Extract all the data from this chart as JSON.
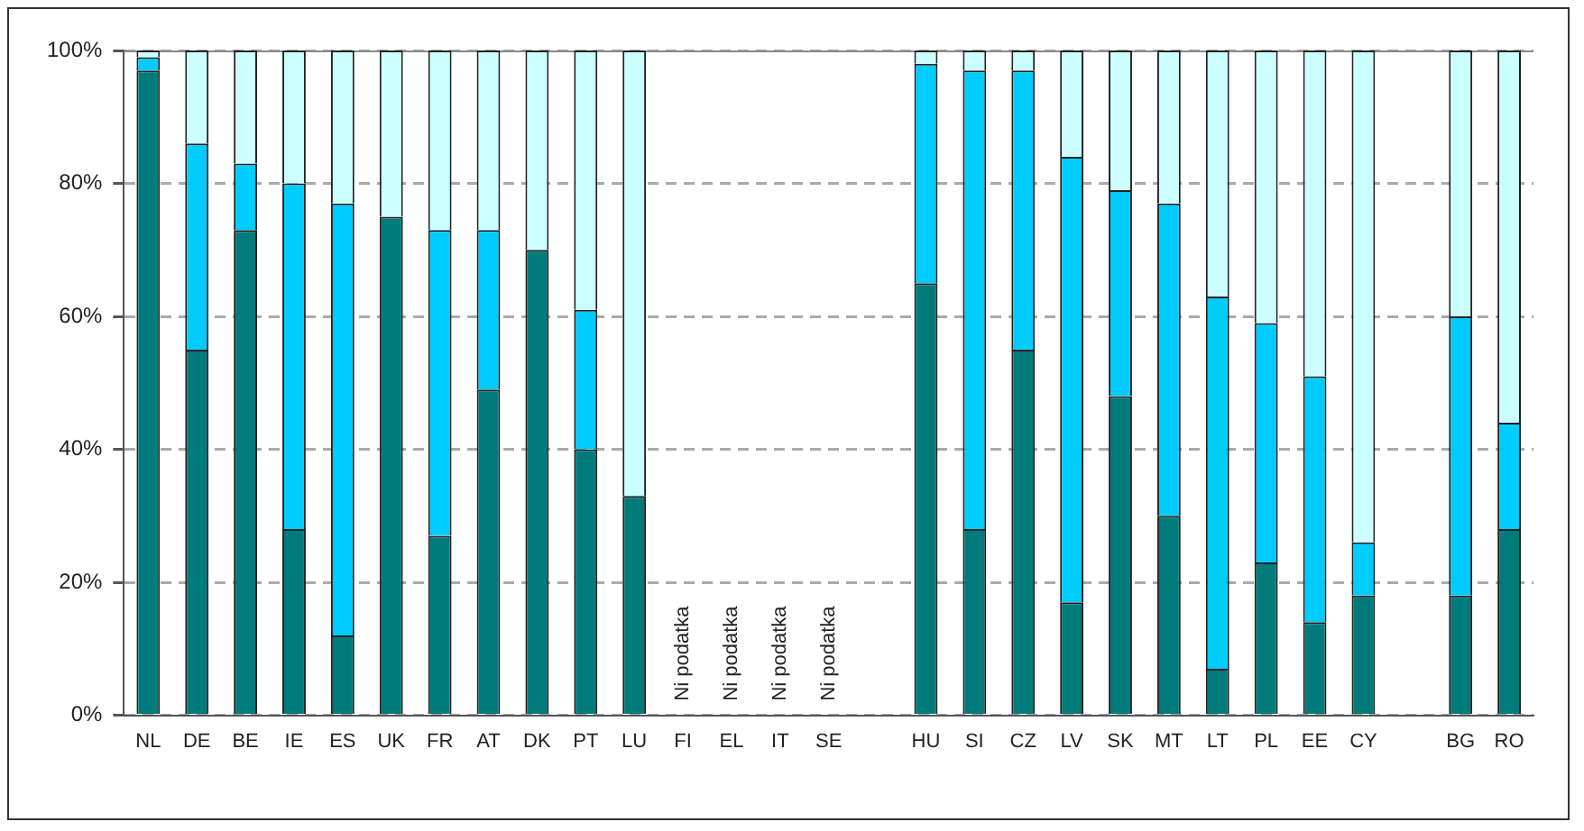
{
  "chart_data": {
    "type": "bar",
    "stacked": true,
    "categories": [
      "NL",
      "DE",
      "BE",
      "IE",
      "ES",
      "UK",
      "FR",
      "AT",
      "DK",
      "PT",
      "LU",
      "FI",
      "EL",
      "IT",
      "SE",
      null,
      "HU",
      "SI",
      "CZ",
      "LV",
      "SK",
      "MT",
      "LT",
      "PL",
      "EE",
      "CY",
      null,
      "BG",
      "RO"
    ],
    "series": [
      {
        "color": "#007b7b",
        "values": [
          97,
          55,
          73,
          28,
          12,
          75,
          27,
          49,
          70,
          40,
          33,
          null,
          null,
          null,
          null,
          null,
          65,
          28,
          55,
          17,
          48,
          30,
          7,
          23,
          14,
          18,
          null,
          18,
          28
        ]
      },
      {
        "color": "#00ccff",
        "values": [
          2,
          31,
          10,
          52,
          65,
          0,
          46,
          24,
          0,
          21,
          0,
          null,
          null,
          null,
          null,
          null,
          33,
          69,
          42,
          67,
          31,
          47,
          56,
          36,
          37,
          8,
          null,
          42,
          16
        ]
      },
      {
        "color": "#ccffff",
        "values": [
          1,
          14,
          17,
          20,
          23,
          25,
          27,
          27,
          30,
          39,
          67,
          null,
          null,
          null,
          null,
          null,
          2,
          3,
          3,
          16,
          21,
          23,
          37,
          41,
          49,
          74,
          null,
          40,
          56
        ]
      }
    ],
    "ylim": [
      0,
      100
    ],
    "yticks": [
      {
        "value": 0,
        "label": "0%"
      },
      {
        "value": 20,
        "label": "20%"
      },
      {
        "value": 40,
        "label": "40%"
      },
      {
        "value": 60,
        "label": "60%"
      },
      {
        "value": 80,
        "label": "80%"
      },
      {
        "value": 100,
        "label": "100%"
      }
    ],
    "grid": "y",
    "legend": false,
    "annotations": [
      "Ni podatka",
      "Ni podatka",
      "Ni podatka",
      "Ni podatka"
    ]
  }
}
